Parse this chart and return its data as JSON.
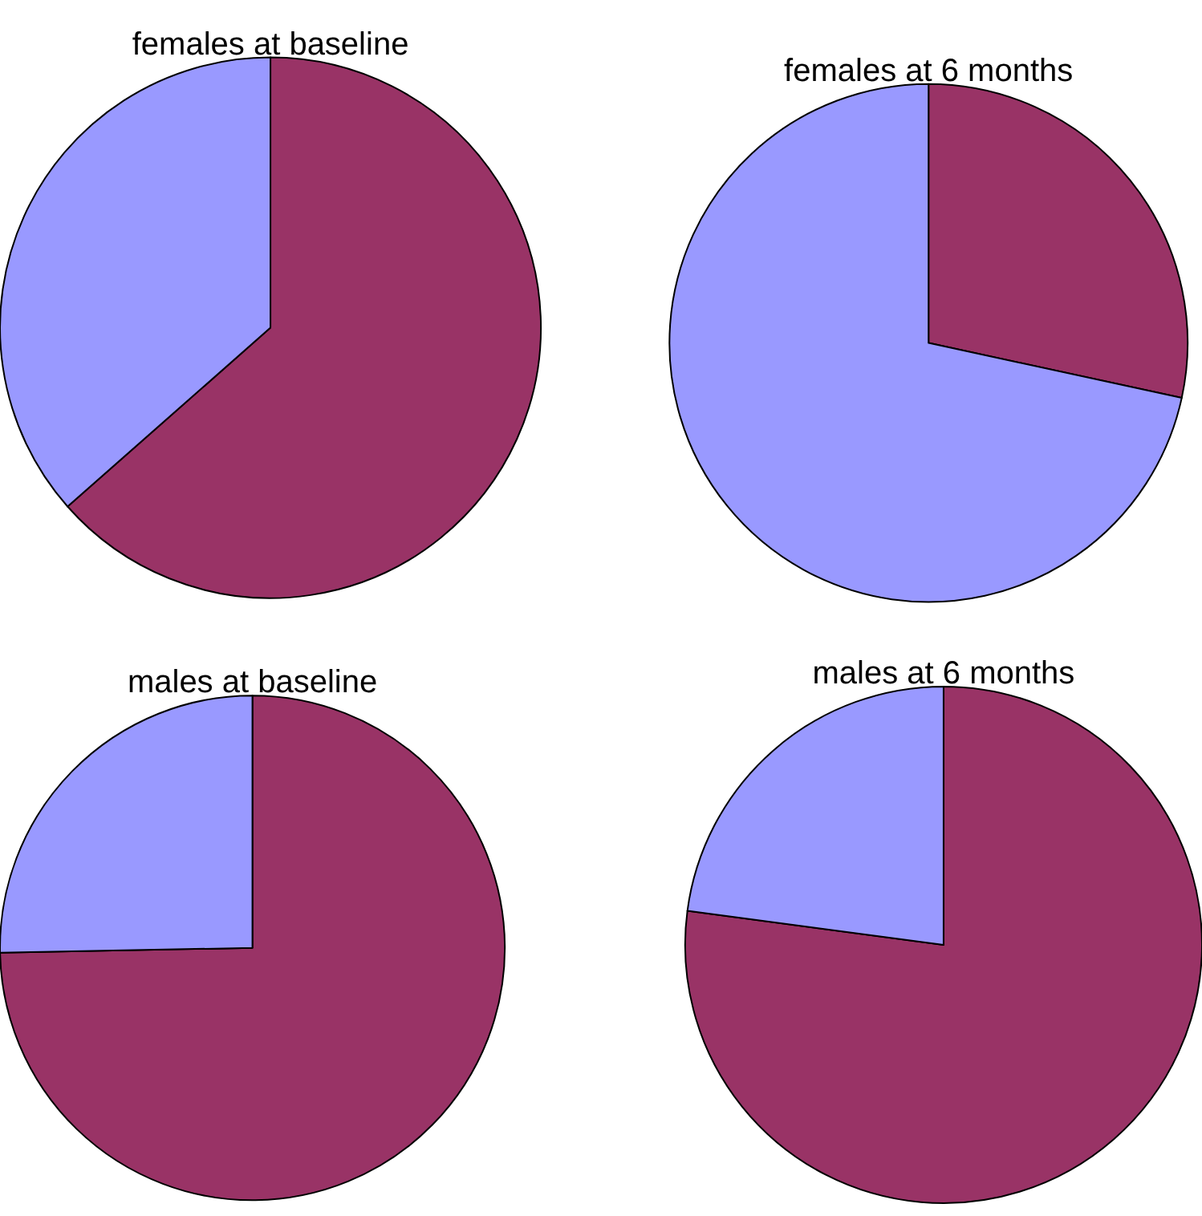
{
  "chart_data": [
    {
      "type": "pie",
      "title": "females at baseline",
      "categories": [
        null,
        null
      ],
      "values": [
        63.5,
        36.5
      ],
      "colors": [
        "#993366",
        "#9999ff"
      ]
    },
    {
      "type": "pie",
      "title": "females at 6 months",
      "categories": [
        null,
        null
      ],
      "values": [
        28.4,
        71.6
      ],
      "colors": [
        "#993366",
        "#9999ff"
      ]
    },
    {
      "type": "pie",
      "title": "males at baseline",
      "categories": [
        null,
        null
      ],
      "values": [
        74.7,
        25.3
      ],
      "colors": [
        "#993366",
        "#9999ff"
      ]
    },
    {
      "type": "pie",
      "title": "males at 6 months",
      "categories": [
        null,
        null
      ],
      "values": [
        77.1,
        22.9
      ],
      "colors": [
        "#993366",
        "#9999ff"
      ]
    }
  ]
}
